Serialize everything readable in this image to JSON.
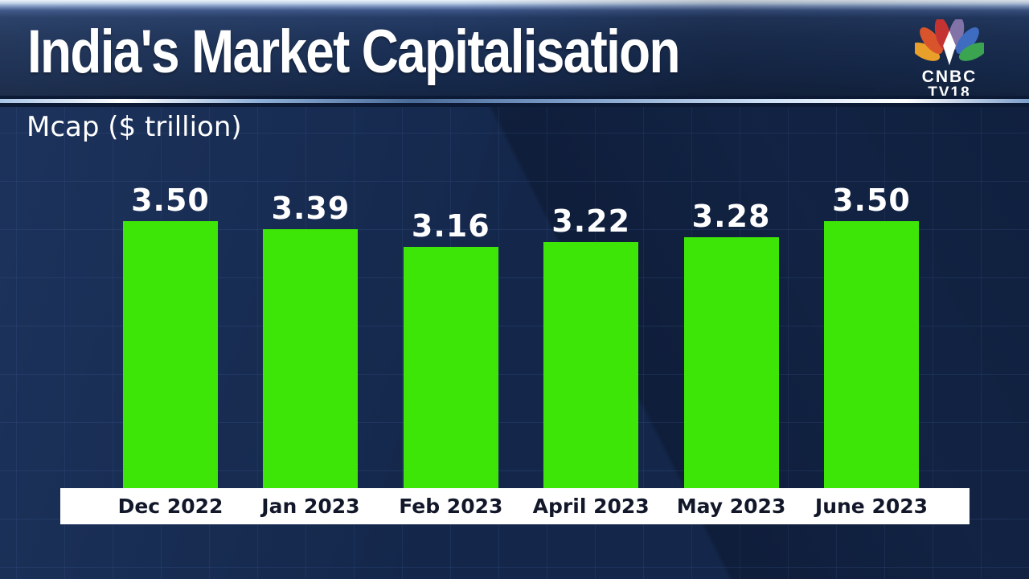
{
  "header": {
    "title": "India's Market Capitalisation"
  },
  "logo": {
    "name": "CNBC TV18",
    "line1": "CNBC",
    "line2": "TV18",
    "feather_colors": [
      "#e9a02b",
      "#d9542b",
      "#c43332",
      "#8172a8",
      "#3e6cc0",
      "#3ba450"
    ]
  },
  "chart_data": {
    "type": "bar",
    "title": "India's Market Capitalisation",
    "unit_label": "Mcap ($ trillion)",
    "categories": [
      "Dec 2022",
      "Jan 2023",
      "Feb 2023",
      "April 2023",
      "May 2023",
      "June 2023"
    ],
    "values": [
      3.5,
      3.39,
      3.16,
      3.22,
      3.28,
      3.5
    ],
    "value_labels": [
      "3.50",
      "3.39",
      "3.16",
      "3.22",
      "3.28",
      "3.50"
    ],
    "ylim": [
      0,
      3.5
    ],
    "grid": "faint blue gridlines on",
    "legend": "none",
    "bar_color": "#3ee607",
    "background_color": "#14274b",
    "axis_strip_color": "#ffffff",
    "value_label_color": "#ffffff",
    "category_text_color": "#12182a"
  }
}
